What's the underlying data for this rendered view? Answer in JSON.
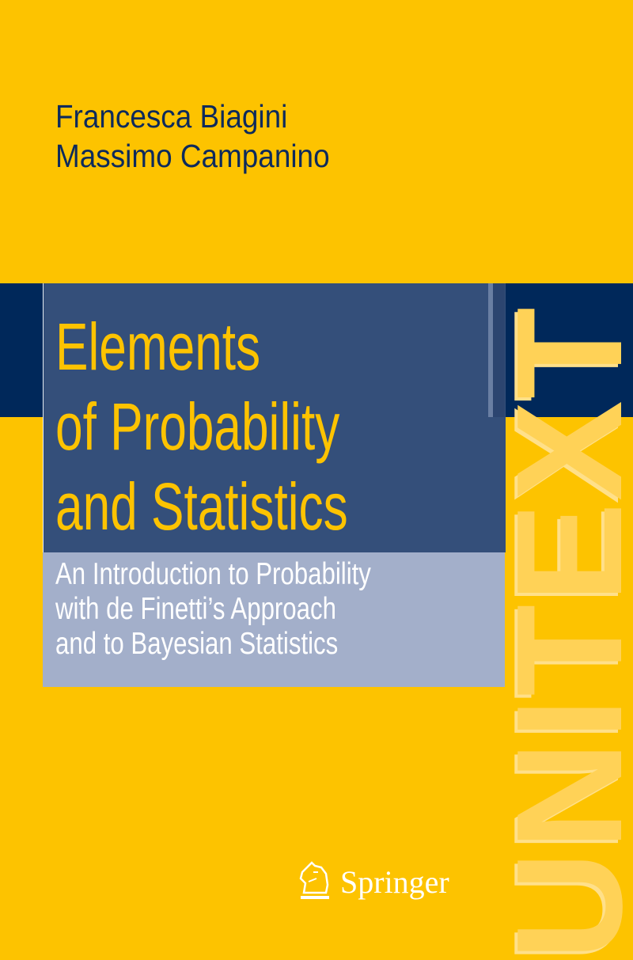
{
  "authors": [
    "Francesca Biagini",
    "Massimo Campanino"
  ],
  "title_lines": [
    "Elements",
    "of Probability",
    "and Statistics"
  ],
  "subtitle_lines": [
    "An Introduction to Probability",
    "with de Finetti’s Approach",
    "and to Bayesian Statistics"
  ],
  "series": "UNITEXT",
  "publisher": {
    "name": "Springer",
    "logo_icon": "knight-horse-icon"
  },
  "colors": {
    "background": "#FDC300",
    "band": "#00285A",
    "title_box": "#344F7A",
    "subtitle_box": "#A3AFCA",
    "authors_text": "#0D2A5C"
  }
}
